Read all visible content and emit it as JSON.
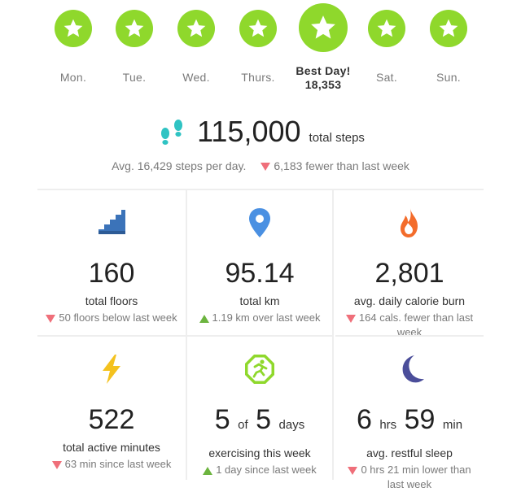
{
  "week": {
    "days": [
      {
        "label": "Mon."
      },
      {
        "label": "Tue."
      },
      {
        "label": "Wed."
      },
      {
        "label": "Thurs."
      },
      {
        "label": "Best Day!",
        "steps": "18,353"
      },
      {
        "label": "Sat."
      },
      {
        "label": "Sun."
      }
    ],
    "star_color": "#8fd82c"
  },
  "total": {
    "icon": "footsteps-icon",
    "steps": "115,000",
    "unit": "total steps",
    "avg": "Avg. 16,429 steps per day.",
    "change": "6,183 fewer than last week"
  },
  "stats": [
    {
      "icon": "stairs-icon",
      "value": "160",
      "caption": "total floors",
      "trend": "down",
      "delta": "50 floors below last week"
    },
    {
      "icon": "location-pin-icon",
      "value": "95.14",
      "caption": "total km",
      "trend": "up",
      "delta": "1.19 km over last week"
    },
    {
      "icon": "flame-icon",
      "value": "2,801",
      "caption": "avg. daily calorie burn",
      "trend": "down",
      "delta": "164 cals. fewer than last week"
    },
    {
      "icon": "lightning-icon",
      "value": "522",
      "caption": "total active minutes",
      "trend": "down",
      "delta": "63 min since last week"
    },
    {
      "icon": "exercise-octagon-icon",
      "value_a": "5",
      "of": "of",
      "value_b": "5",
      "unit": "days",
      "caption": "exercising this week",
      "trend": "up",
      "delta": "1 day since last week"
    },
    {
      "icon": "moon-icon",
      "hrs": "6",
      "hrs_unit": "hrs",
      "min": "59",
      "min_unit": "min",
      "caption": "avg. restful sleep",
      "trend": "down",
      "delta": "0 hrs 21 min lower than last week"
    }
  ],
  "colors": {
    "down": "#ef6f7a",
    "up": "#6cb43f",
    "stairs": "#3b73b9",
    "pin": "#4a90e2",
    "flame": "#f36c2b",
    "bolt": "#f4c21f",
    "exercise": "#8fd82c",
    "moon": "#4b4e9a",
    "footsteps": "#2fc3c3"
  }
}
